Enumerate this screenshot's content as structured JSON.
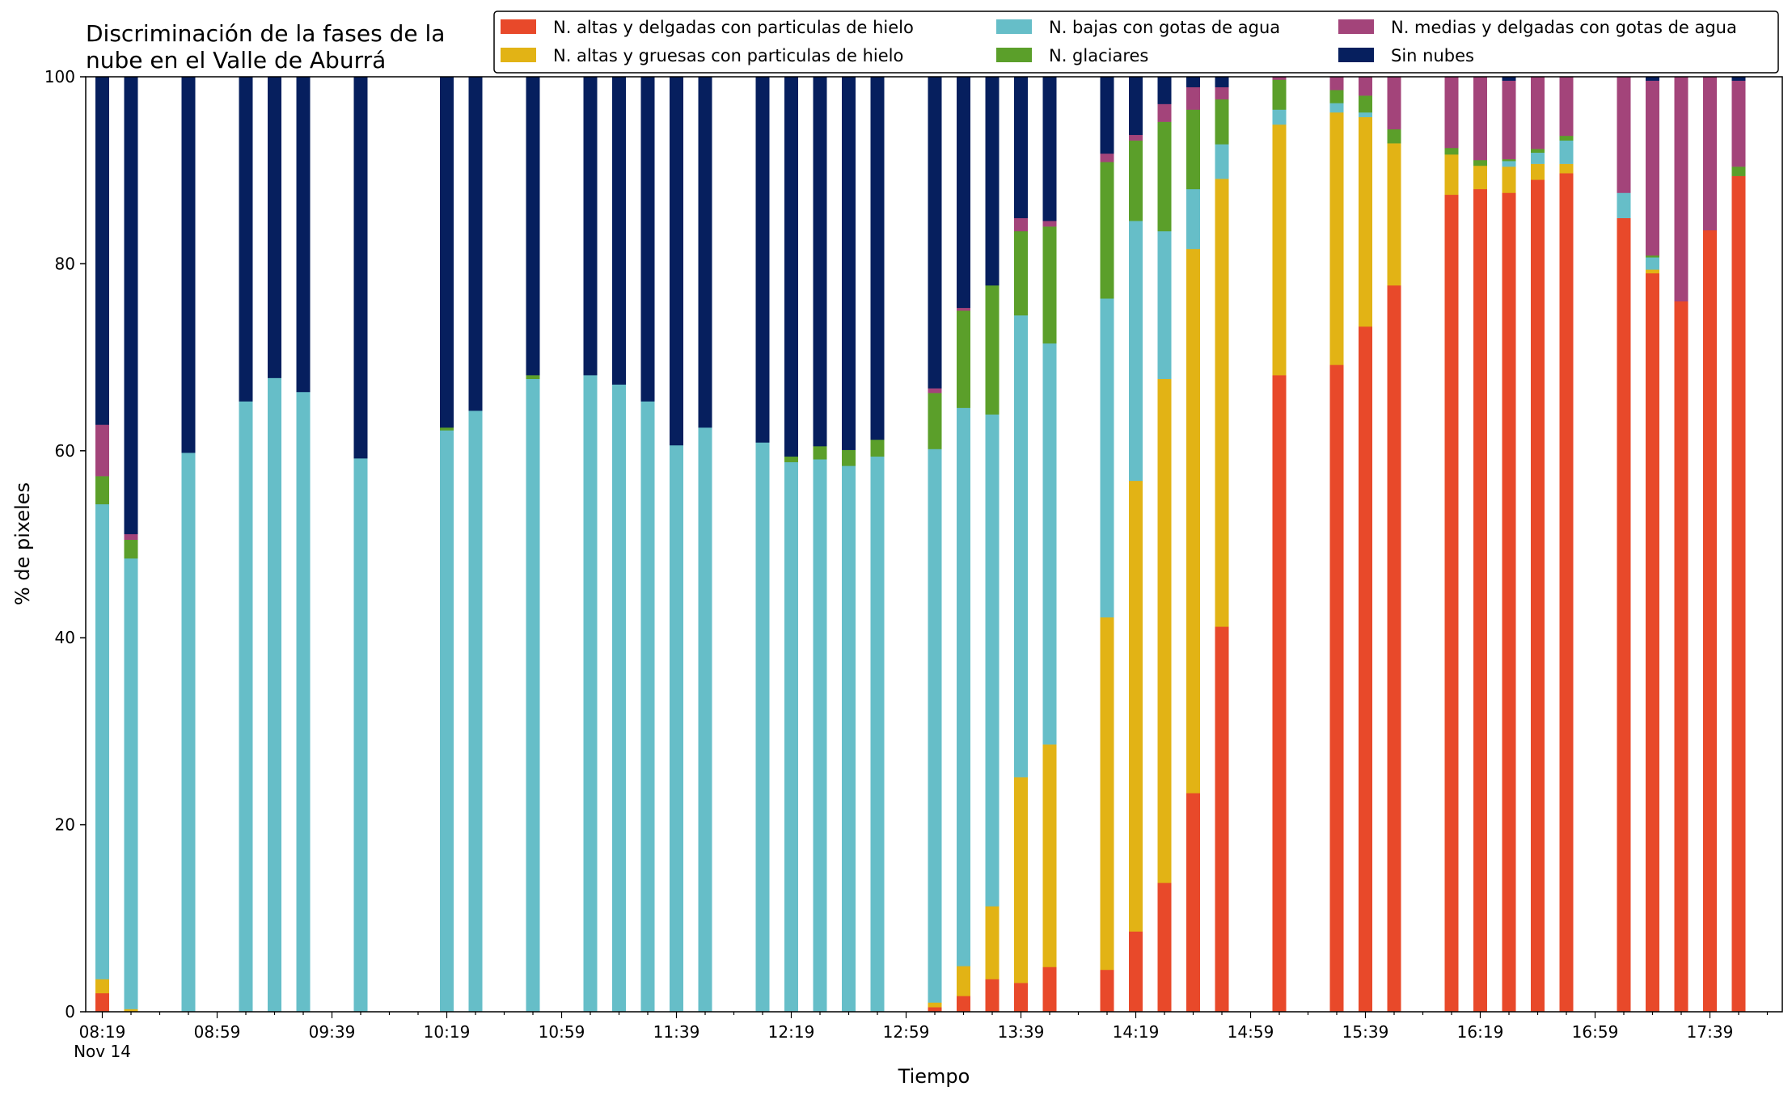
{
  "chart_data": {
    "type": "bar",
    "stacked": true,
    "title_lines": [
      "Discriminación de la fases de la",
      "nube en el Valle de Aburrá"
    ],
    "xlabel": "Tiempo",
    "ylabel": "% de pixeles",
    "ylim": [
      0,
      100
    ],
    "yticks": [
      "0",
      "20",
      "40",
      "60",
      "80",
      "100"
    ],
    "xtick_labels": [
      "08:19",
      "08:59",
      "09:39",
      "10:19",
      "10:59",
      "11:39",
      "12:19",
      "12:59",
      "13:39",
      "14:19",
      "14:59",
      "15:39",
      "16:19",
      "16:59",
      "17:39"
    ],
    "xtick_sublabel": "Nov 14",
    "legend_position": "top-right",
    "legend_columns": 3,
    "series": [
      {
        "name": "N. altas y delgadas con particulas de hielo",
        "color": "#e8492a"
      },
      {
        "name": "N. altas y gruesas con particulas de hielo",
        "color": "#e2b315"
      },
      {
        "name": "N. bajas con gotas de agua",
        "color": "#66bec8"
      },
      {
        "name": "N. glaciares",
        "color": "#5b9f2a"
      },
      {
        "name": "N. medias y delgadas con gotas de agua",
        "color": "#a3447a"
      },
      {
        "name": "Sin nubes",
        "color": "#061f5e"
      }
    ],
    "x_slot_minutes": 10,
    "bars": [
      {
        "slot": 0,
        "values": [
          2.0,
          1.5,
          50.8,
          3.0,
          5.5,
          37.2
        ]
      },
      {
        "slot": 1,
        "values": [
          0.0,
          0.3,
          48.2,
          2.0,
          0.6,
          48.9
        ]
      },
      {
        "slot": 3,
        "values": [
          0,
          0,
          59.8,
          0,
          0,
          40.2
        ]
      },
      {
        "slot": 5,
        "values": [
          0,
          0,
          65.3,
          0,
          0,
          34.7
        ]
      },
      {
        "slot": 6,
        "values": [
          0,
          0,
          67.8,
          0,
          0,
          32.2
        ]
      },
      {
        "slot": 7,
        "values": [
          0,
          0,
          66.3,
          0,
          0,
          33.7
        ]
      },
      {
        "slot": 9,
        "values": [
          0,
          0,
          59.2,
          0,
          0,
          40.8
        ]
      },
      {
        "slot": 12,
        "values": [
          0,
          0,
          62.2,
          0.3,
          0,
          37.5
        ]
      },
      {
        "slot": 13,
        "values": [
          0,
          0,
          64.3,
          0,
          0,
          35.7
        ]
      },
      {
        "slot": 15,
        "values": [
          0,
          0,
          67.7,
          0.4,
          0,
          31.9
        ]
      },
      {
        "slot": 17,
        "values": [
          0,
          0,
          68.1,
          0,
          0,
          31.9
        ]
      },
      {
        "slot": 18,
        "values": [
          0,
          0,
          67.1,
          0,
          0,
          32.9
        ]
      },
      {
        "slot": 19,
        "values": [
          0,
          0,
          65.3,
          0,
          0,
          34.7
        ]
      },
      {
        "slot": 20,
        "values": [
          0,
          0,
          60.6,
          0,
          0,
          39.4
        ]
      },
      {
        "slot": 21,
        "values": [
          0,
          0,
          62.5,
          0,
          0,
          37.5
        ]
      },
      {
        "slot": 23,
        "values": [
          0,
          0,
          60.9,
          0,
          0,
          39.1
        ]
      },
      {
        "slot": 24,
        "values": [
          0,
          0,
          58.8,
          0.6,
          0,
          40.6
        ]
      },
      {
        "slot": 25,
        "values": [
          0,
          0,
          59.1,
          1.4,
          0,
          39.5
        ]
      },
      {
        "slot": 26,
        "values": [
          0,
          0,
          58.4,
          1.7,
          0,
          39.9
        ]
      },
      {
        "slot": 27,
        "values": [
          0,
          0,
          59.4,
          1.8,
          0,
          38.8
        ]
      },
      {
        "slot": 29,
        "values": [
          0.5,
          0.5,
          59.2,
          6.0,
          0.5,
          33.3
        ]
      },
      {
        "slot": 30,
        "values": [
          1.7,
          3.2,
          59.7,
          10.4,
          0.3,
          24.7
        ]
      },
      {
        "slot": 31,
        "values": [
          3.5,
          7.8,
          52.6,
          13.8,
          0,
          22.3
        ]
      },
      {
        "slot": 32,
        "values": [
          3.1,
          22.0,
          49.4,
          9.0,
          1.4,
          15.1
        ]
      },
      {
        "slot": 33,
        "values": [
          4.8,
          23.8,
          42.9,
          12.5,
          0.6,
          15.4
        ]
      },
      {
        "slot": 35,
        "values": [
          4.5,
          37.7,
          34.1,
          14.6,
          0.9,
          8.2
        ]
      },
      {
        "slot": 36,
        "values": [
          8.6,
          48.2,
          27.8,
          8.6,
          0.6,
          6.2
        ]
      },
      {
        "slot": 37,
        "values": [
          13.8,
          53.9,
          15.8,
          11.7,
          1.9,
          2.9
        ]
      },
      {
        "slot": 38,
        "values": [
          23.4,
          58.2,
          6.4,
          8.5,
          2.4,
          1.1
        ]
      },
      {
        "slot": 39,
        "values": [
          41.2,
          47.9,
          3.7,
          4.8,
          1.3,
          1.1
        ]
      },
      {
        "slot": 41,
        "values": [
          68.1,
          26.8,
          1.6,
          3.2,
          0.3,
          0.0
        ]
      },
      {
        "slot": 43,
        "values": [
          69.2,
          27.0,
          1.0,
          1.4,
          1.4,
          0.0
        ]
      },
      {
        "slot": 44,
        "values": [
          73.3,
          22.4,
          0.5,
          1.8,
          2.0,
          0.0
        ]
      },
      {
        "slot": 45,
        "values": [
          77.7,
          15.2,
          0,
          1.5,
          5.6,
          0.0
        ]
      },
      {
        "slot": 47,
        "values": [
          87.4,
          4.3,
          0,
          0.7,
          7.6,
          0.0
        ]
      },
      {
        "slot": 48,
        "values": [
          88.0,
          2.5,
          0,
          0.6,
          8.9,
          0.0
        ]
      },
      {
        "slot": 49,
        "values": [
          87.6,
          2.8,
          0.6,
          0.2,
          8.4,
          0.4
        ]
      },
      {
        "slot": 50,
        "values": [
          89.0,
          1.7,
          1.2,
          0.4,
          7.7,
          0.0
        ]
      },
      {
        "slot": 51,
        "values": [
          89.7,
          1.0,
          2.5,
          0.5,
          6.3,
          0.0
        ]
      },
      {
        "slot": 53,
        "values": [
          84.9,
          0,
          2.7,
          0,
          12.4,
          0.0
        ]
      },
      {
        "slot": 54,
        "values": [
          79.0,
          0.4,
          1.3,
          0.2,
          18.7,
          0.4
        ]
      },
      {
        "slot": 55,
        "values": [
          76.0,
          0,
          0,
          0,
          24.0,
          0.0
        ]
      },
      {
        "slot": 56,
        "values": [
          83.6,
          0,
          0,
          0,
          16.4,
          0.0
        ]
      },
      {
        "slot": 57,
        "values": [
          89.4,
          0,
          0,
          1.0,
          9.2,
          0.4
        ]
      }
    ]
  }
}
